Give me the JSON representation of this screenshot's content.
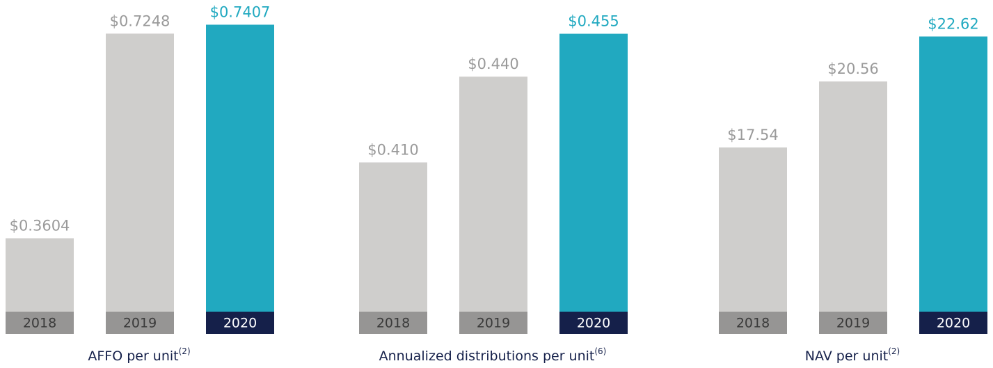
{
  "chart_data": [
    {
      "type": "bar",
      "title": "AFFO per unit",
      "title_note": "(2)",
      "categories": [
        "2018",
        "2019",
        "2020"
      ],
      "values": [
        0.3604,
        0.7248,
        0.7407
      ],
      "value_labels": [
        "$0.3604",
        "$0.7248",
        "$0.7407"
      ],
      "colors": [
        "#cfcecc",
        "#cfcecc",
        "#21a9c0"
      ],
      "label_colors": [
        "#9a9a9a",
        "#9a9a9a",
        "#21a9c0"
      ],
      "category_colors": [
        "#969594",
        "#969594",
        "#15204a"
      ],
      "ylim": [
        0.19,
        0.75
      ]
    },
    {
      "type": "bar",
      "title": "Annualized distributions per unit",
      "title_note": "(6)",
      "categories": [
        "2018",
        "2019",
        "2020"
      ],
      "values": [
        0.41,
        0.44,
        0.455
      ],
      "value_labels": [
        "$0.410",
        "$0.440",
        "$0.455"
      ],
      "colors": [
        "#cfcecc",
        "#cfcecc",
        "#21a9c0"
      ],
      "label_colors": [
        "#9a9a9a",
        "#9a9a9a",
        "#21a9c0"
      ],
      "category_colors": [
        "#969594",
        "#969594",
        "#15204a"
      ],
      "ylim": [
        0.35,
        0.46
      ]
    },
    {
      "type": "bar",
      "title": "NAV per unit",
      "title_note": "(2)",
      "categories": [
        "2018",
        "2019",
        "2020"
      ],
      "values": [
        17.54,
        20.56,
        22.62
      ],
      "value_labels": [
        "$17.54",
        "$20.56",
        "$22.62"
      ],
      "colors": [
        "#cfcecc",
        "#cfcecc",
        "#21a9c0"
      ],
      "label_colors": [
        "#9a9a9a",
        "#9a9a9a",
        "#21a9c0"
      ],
      "category_colors": [
        "#969594",
        "#969594",
        "#15204a"
      ],
      "ylim": [
        9,
        23.4
      ]
    }
  ]
}
